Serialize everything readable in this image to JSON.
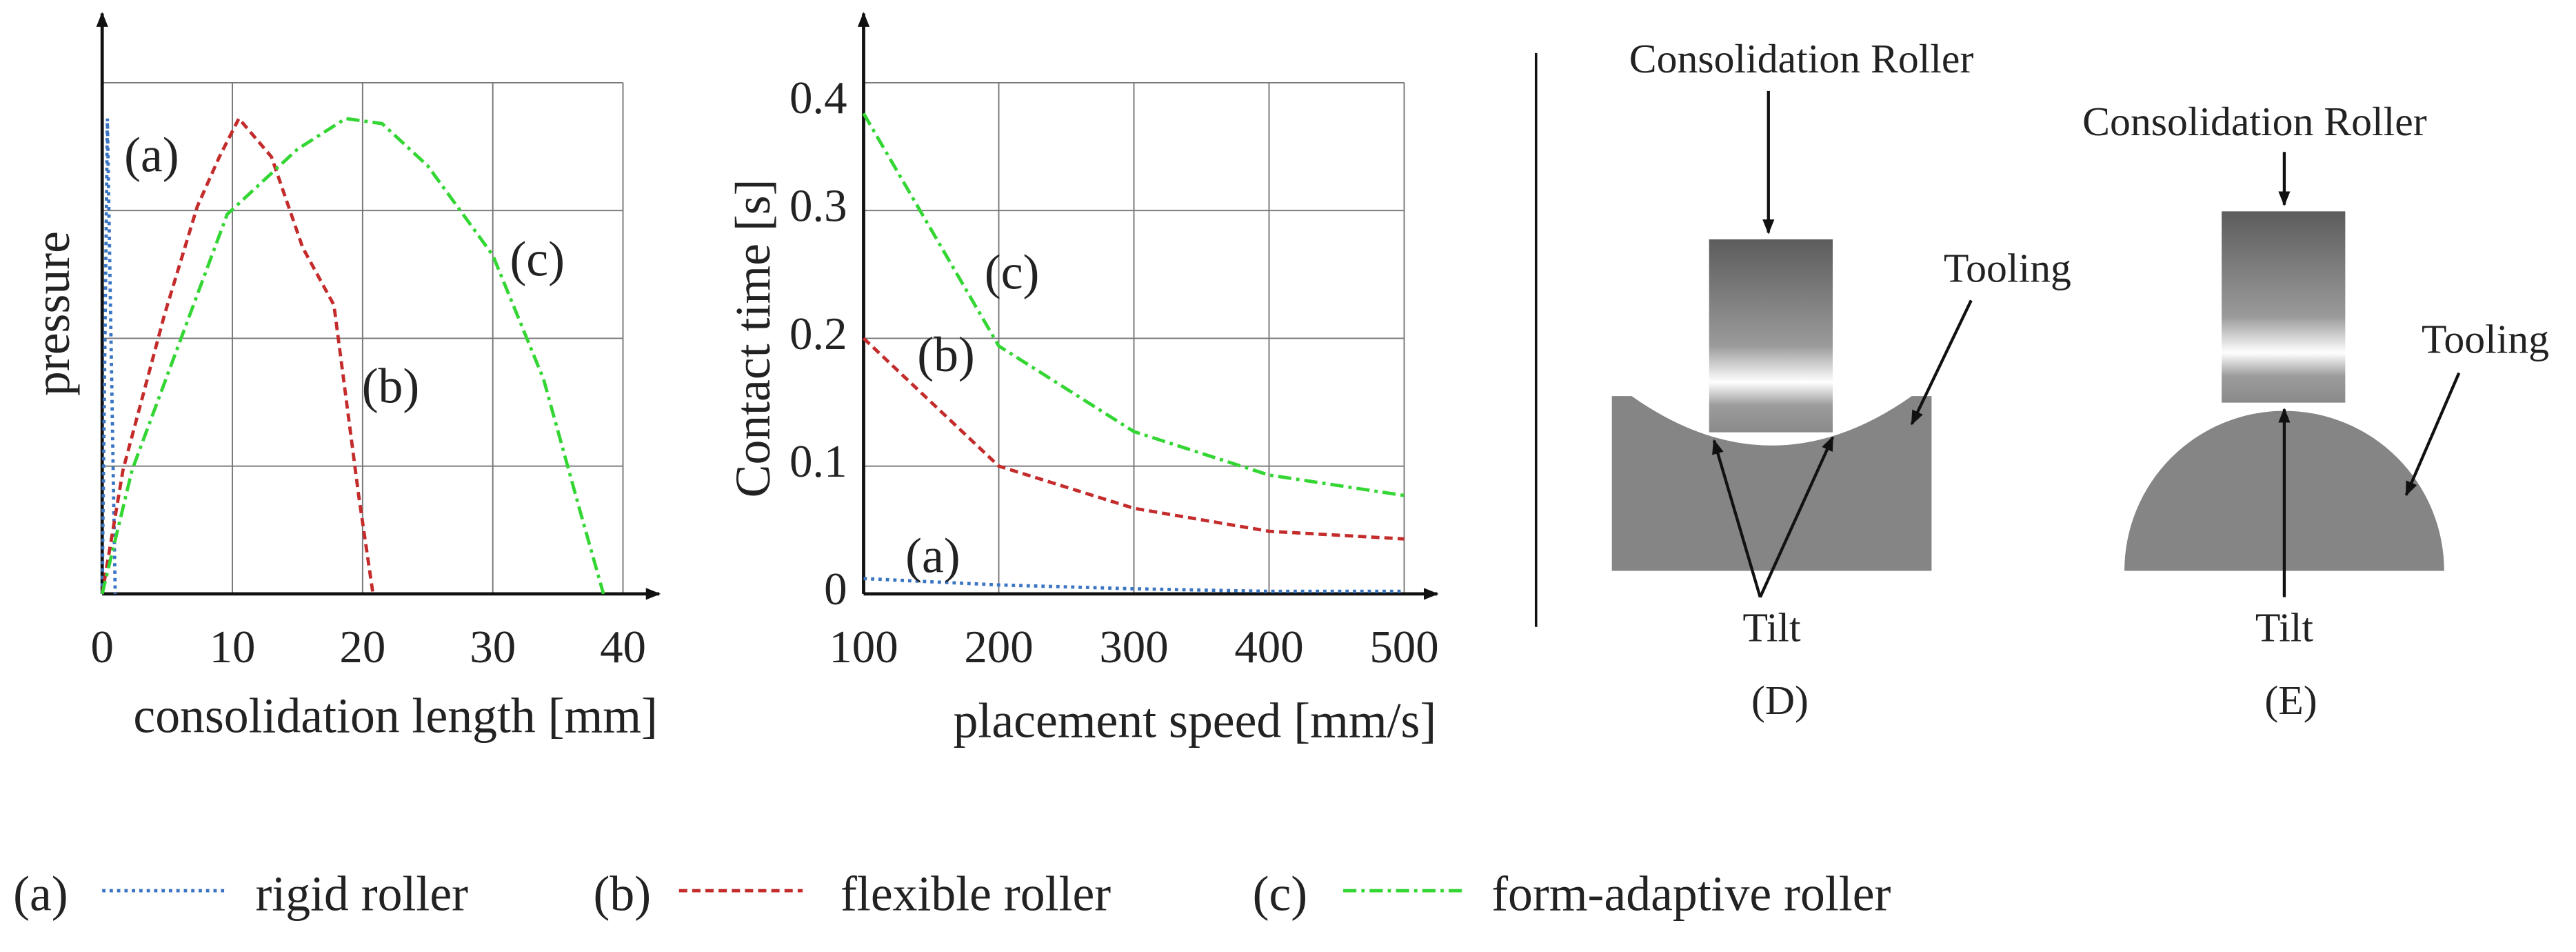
{
  "chart_data": [
    {
      "type": "line",
      "xlabel": "consolidation length [mm]",
      "ylabel": "pressure",
      "xlim": [
        0,
        40
      ],
      "xticks": [
        0,
        10,
        20,
        30,
        40
      ],
      "ylim": [
        0,
        4
      ],
      "ygrid": [
        1,
        2,
        3,
        4
      ],
      "series": [
        {
          "name": "rigid roller",
          "label": "(a)",
          "color": "#3a75c4",
          "linestyle": "dotted",
          "x": [
            0,
            0.4,
            1.0
          ],
          "values": [
            0,
            3.72,
            0
          ]
        },
        {
          "name": "flexible roller",
          "label": "(b)",
          "color": "#c42b2b",
          "linestyle": "dashed",
          "x": [
            0,
            1.6,
            4.8,
            7.3,
            9,
            10.5,
            13,
            15.4,
            17.8,
            19.7,
            20.8
          ],
          "values": [
            0,
            0.97,
            2.19,
            3.03,
            3.42,
            3.72,
            3.42,
            2.71,
            2.26,
            0.77,
            0
          ]
        },
        {
          "name": "form-adaptive roller",
          "label": "(c)",
          "color": "#33d633",
          "linestyle": "dashdot",
          "x": [
            0,
            2.3,
            9.6,
            15,
            18.7,
            21.5,
            25,
            30,
            33.9,
            36.7,
            38.5
          ],
          "values": [
            0,
            0.97,
            2.97,
            3.48,
            3.72,
            3.68,
            3.35,
            2.65,
            1.68,
            0.65,
            0
          ]
        }
      ]
    },
    {
      "type": "line",
      "xlabel": "placement speed [mm/s]",
      "ylabel": "Contact time [s]",
      "x": [
        100,
        200,
        300,
        400,
        500
      ],
      "xlim": [
        100,
        500
      ],
      "xticks": [
        100,
        200,
        300,
        400,
        500
      ],
      "ylim": [
        0,
        0.4
      ],
      "yticks": [
        0,
        0.1,
        0.2,
        0.3,
        0.4
      ],
      "series": [
        {
          "name": "rigid roller",
          "label": "(a)",
          "color": "#3a75c4",
          "linestyle": "dotted",
          "values": [
            0.012,
            0.007,
            0.004,
            0.002,
            0.002
          ]
        },
        {
          "name": "flexible roller",
          "label": "(b)",
          "color": "#c42b2b",
          "linestyle": "dashed",
          "values": [
            0.2,
            0.1,
            0.067,
            0.049,
            0.043
          ]
        },
        {
          "name": "form-adaptive roller",
          "label": "(c)",
          "color": "#33d633",
          "linestyle": "dashdot",
          "values": [
            0.376,
            0.194,
            0.127,
            0.093,
            0.077
          ]
        }
      ]
    }
  ],
  "diagram": {
    "panels": [
      {
        "roller": "Consolidation Roller",
        "tooling": "Tooling",
        "tilt": "Tilt",
        "label": "(D)"
      },
      {
        "roller": "Consolidation Roller",
        "tooling": "Tooling",
        "tilt": "Tilt",
        "label": "(E)"
      }
    ]
  }
}
